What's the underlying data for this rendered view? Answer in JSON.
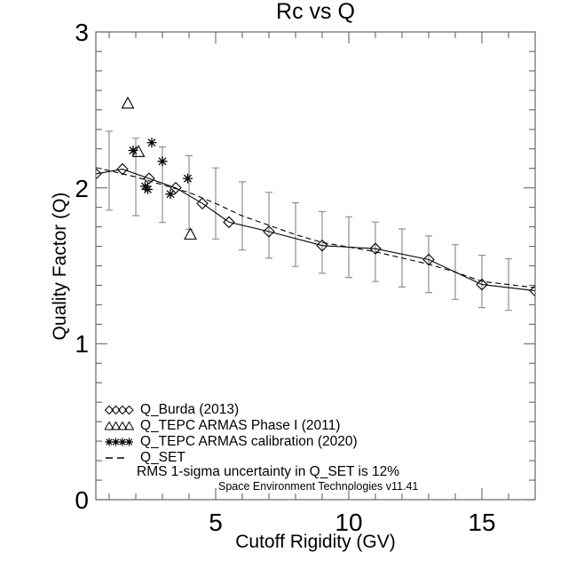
{
  "title": "Rc vs Q",
  "axes": {
    "xlabel": "Cutoff Rigidity (GV)",
    "ylabel": "Quality Factor (Q)",
    "xlim": [
      0.5,
      17
    ],
    "ylim": [
      0,
      3
    ],
    "xticks_major": [
      5,
      10,
      15
    ],
    "xticks_minor_every": 1,
    "yticks_major": [
      3,
      2,
      1,
      0
    ],
    "yticks_minor_every": 0.125
  },
  "chart_data": {
    "type": "line",
    "title": "Rc vs Q",
    "xlabel": "Cutoff Rigidity (GV)",
    "ylabel": "Quality Factor (Q)",
    "xlim": [
      0.5,
      17
    ],
    "ylim": [
      0,
      3
    ],
    "grid": false,
    "series": [
      {
        "name": "Q_Burda (2013)",
        "style": "solid-line",
        "symbol": "diamond",
        "x": [
          0.5,
          1.5,
          2.5,
          3.5,
          4.5,
          5.5,
          7,
          9,
          11,
          13,
          15,
          17
        ],
        "y": [
          2.09,
          2.12,
          2.06,
          2.0,
          1.9,
          1.78,
          1.72,
          1.63,
          1.61,
          1.54,
          1.38,
          1.34
        ]
      },
      {
        "name": "Q_TEPC ARMAS Phase I (2011)",
        "style": "scatter",
        "symbol": "triangle",
        "x": [
          1.7,
          2.1,
          4.05
        ],
        "y": [
          2.54,
          2.23,
          1.7
        ]
      },
      {
        "name": "Q_TEPC ARMAS calibration (2020)",
        "style": "scatter",
        "symbol": "asterisk",
        "x": [
          1.9,
          2.35,
          2.45,
          2.6,
          3.0,
          3.3,
          3.95
        ],
        "y": [
          2.24,
          2.01,
          1.99,
          2.29,
          2.17,
          1.96,
          2.06
        ]
      },
      {
        "name": "Q_SET",
        "style": "dashed-line",
        "symbol": "none",
        "x": [
          0.5,
          1,
          2,
          3,
          4,
          5,
          6,
          7,
          8,
          9,
          10,
          11,
          12,
          13,
          14,
          15,
          16,
          17
        ],
        "y": [
          2.13,
          2.11,
          2.07,
          2.02,
          1.97,
          1.9,
          1.82,
          1.76,
          1.7,
          1.65,
          1.62,
          1.59,
          1.55,
          1.51,
          1.46,
          1.4,
          1.38,
          1.36
        ]
      }
    ],
    "error_bars": {
      "on_series": "Q_SET",
      "x": [
        1,
        2,
        3,
        4,
        5,
        6,
        7,
        8,
        9,
        10,
        11,
        12,
        13,
        14,
        15,
        16
      ],
      "sigma_fraction": 0.12,
      "color": "#909090"
    }
  },
  "legend": {
    "items": [
      {
        "label": "Q_Burda (2013)",
        "symbol": "diamonds"
      },
      {
        "label": "Q_TEPC ARMAS Phase I (2011)",
        "symbol": "triangles"
      },
      {
        "label": "Q_TEPC ARMAS calibration (2020)",
        "symbol": "asterisks"
      },
      {
        "label": "Q_SET",
        "symbol": "dashes"
      }
    ],
    "note": "RMS 1-sigma uncertainty in Q_SET is 12%",
    "credit": "Space Environment Technologies v11.41"
  },
  "colors": {
    "foreground": "#000000",
    "frame": "#666666",
    "error_bar": "#909090",
    "background": "#ffffff"
  }
}
